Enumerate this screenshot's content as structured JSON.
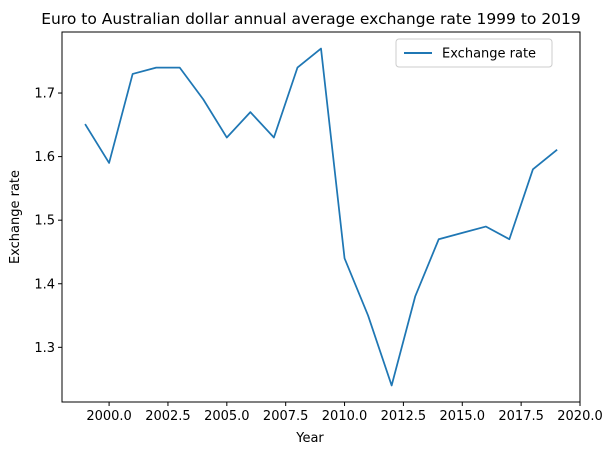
{
  "chart_data": {
    "type": "line",
    "title": "Euro to Australian dollar annual average exchange rate 1999 to 2019",
    "xlabel": "Year",
    "ylabel": "Exchange rate",
    "xlim": [
      1998.0,
      2020.0
    ],
    "ylim": [
      1.214,
      1.796
    ],
    "xticks": [
      2000.0,
      2002.5,
      2005.0,
      2007.5,
      2010.0,
      2012.5,
      2015.0,
      2017.5,
      2020.0
    ],
    "xtick_labels": [
      "2000.0",
      "2002.5",
      "2005.0",
      "2007.5",
      "2010.0",
      "2012.5",
      "2015.0",
      "2017.5",
      "2020.0"
    ],
    "yticks": [
      1.3,
      1.4,
      1.5,
      1.6,
      1.7
    ],
    "ytick_labels": [
      "1.3",
      "1.4",
      "1.5",
      "1.6",
      "1.7"
    ],
    "grid": false,
    "legend_position": "top-right",
    "series": [
      {
        "name": "Exchange rate",
        "color": "#1f77b4",
        "x": [
          1999,
          2000,
          2001,
          2002,
          2003,
          2004,
          2005,
          2006,
          2007,
          2008,
          2009,
          2010,
          2011,
          2012,
          2013,
          2014,
          2015,
          2016,
          2017,
          2018,
          2019
        ],
        "y": [
          1.65,
          1.59,
          1.73,
          1.74,
          1.74,
          1.69,
          1.63,
          1.67,
          1.63,
          1.74,
          1.77,
          1.44,
          1.35,
          1.24,
          1.38,
          1.47,
          1.48,
          1.49,
          1.47,
          1.58,
          1.61
        ]
      }
    ]
  }
}
